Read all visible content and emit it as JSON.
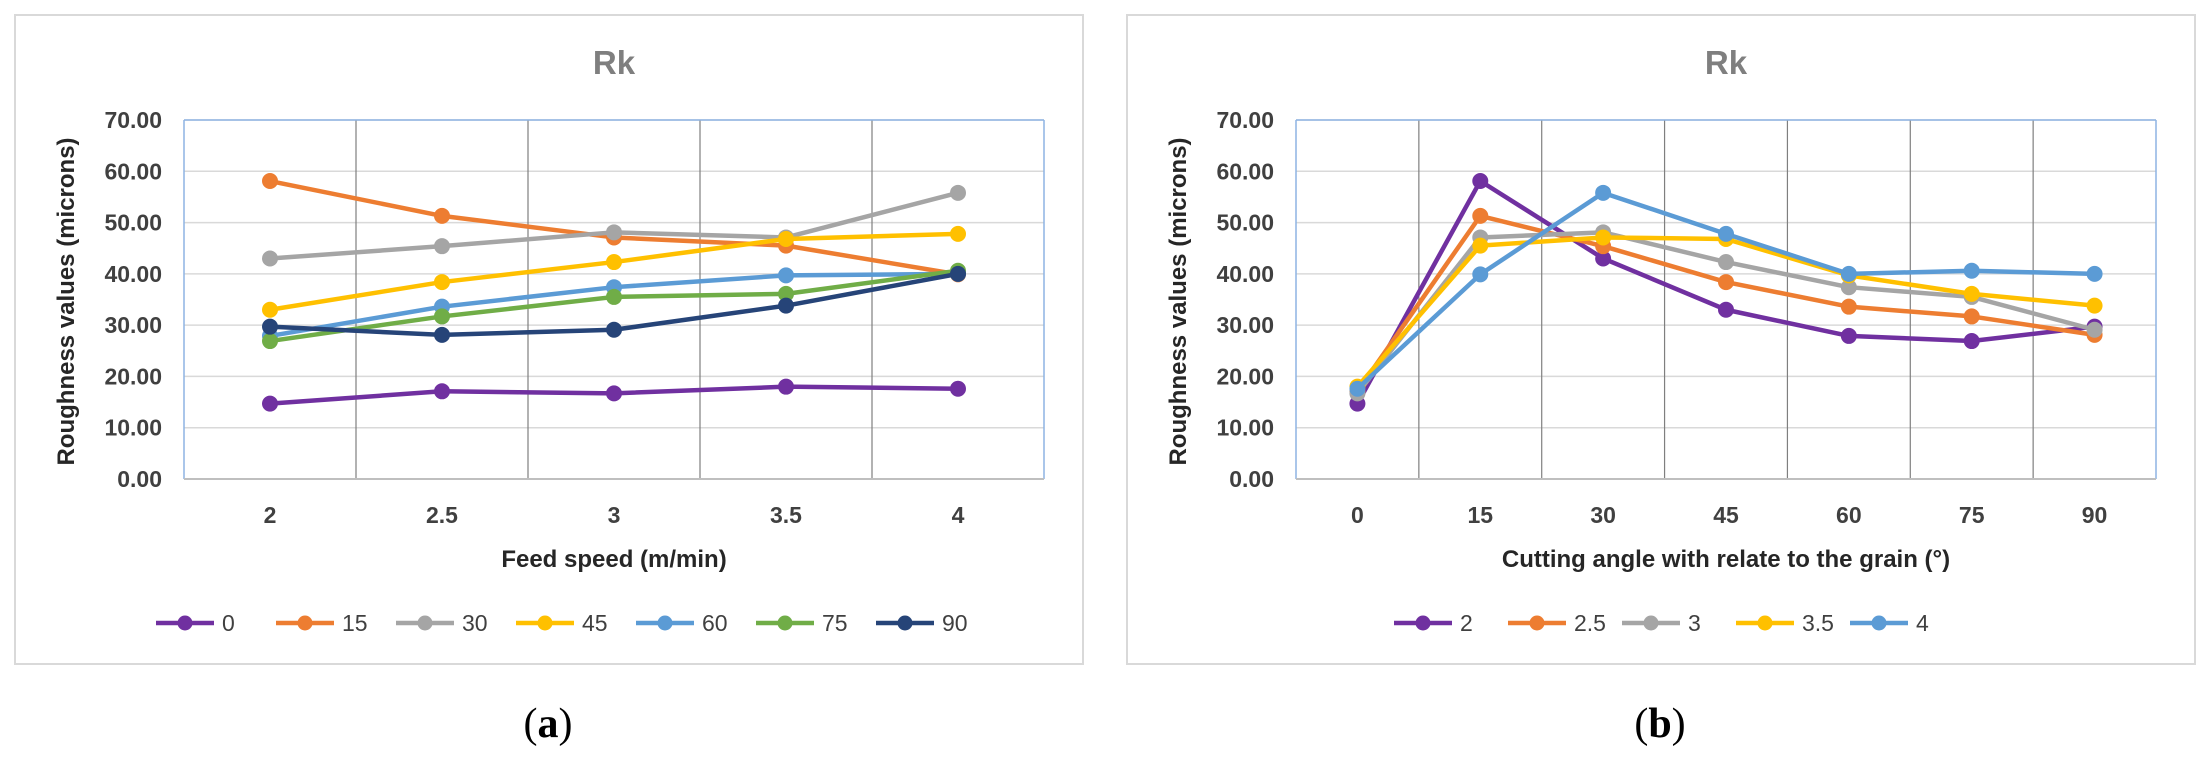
{
  "chart_data": [
    {
      "type": "line",
      "title": "Rk",
      "xlabel": "Feed speed (m/min)",
      "ylabel": "Roughness values (microns)",
      "categories": [
        "2",
        "2.5",
        "3",
        "3.5",
        "4"
      ],
      "ylim": [
        0,
        70
      ],
      "yticks": [
        "0.00",
        "10.00",
        "20.00",
        "30.00",
        "40.00",
        "50.00",
        "60.00",
        "70.00"
      ],
      "legend_position": "bottom",
      "series": [
        {
          "name": "0",
          "color": "#7030a0",
          "values": [
            14.7,
            17.1,
            16.7,
            18.0,
            17.6
          ]
        },
        {
          "name": "15",
          "color": "#ed7d31",
          "values": [
            58.1,
            51.3,
            47.1,
            45.5,
            39.9
          ]
        },
        {
          "name": "30",
          "color": "#a5a5a5",
          "values": [
            43.0,
            45.4,
            48.1,
            47.1,
            55.8
          ]
        },
        {
          "name": "45",
          "color": "#ffc000",
          "values": [
            33.0,
            38.4,
            42.3,
            46.8,
            47.8
          ]
        },
        {
          "name": "60",
          "color": "#5b9bd5",
          "values": [
            27.9,
            33.6,
            37.4,
            39.7,
            40.0
          ]
        },
        {
          "name": "75",
          "color": "#70ad47",
          "values": [
            26.9,
            31.7,
            35.5,
            36.1,
            40.6
          ]
        },
        {
          "name": "90",
          "color": "#264478",
          "values": [
            29.7,
            28.1,
            29.1,
            33.8,
            40.0
          ]
        }
      ]
    },
    {
      "type": "line",
      "title": "Rk",
      "xlabel": "Cutting angle with relate to the grain (°)",
      "ylabel": "Roughness values (microns)",
      "categories": [
        "0",
        "15",
        "30",
        "45",
        "60",
        "75",
        "90"
      ],
      "ylim": [
        0,
        70
      ],
      "yticks": [
        "0.00",
        "10.00",
        "20.00",
        "30.00",
        "40.00",
        "50.00",
        "60.00",
        "70.00"
      ],
      "legend_position": "bottom",
      "series": [
        {
          "name": "2",
          "color": "#7030a0",
          "values": [
            14.7,
            58.1,
            43.0,
            33.0,
            27.9,
            26.9,
            29.7
          ]
        },
        {
          "name": "2.5",
          "color": "#ed7d31",
          "values": [
            17.1,
            51.3,
            45.4,
            38.4,
            33.6,
            31.7,
            28.1
          ]
        },
        {
          "name": "3",
          "color": "#a5a5a5",
          "values": [
            16.7,
            47.1,
            48.1,
            42.3,
            37.4,
            35.5,
            29.1
          ]
        },
        {
          "name": "3.5",
          "color": "#ffc000",
          "values": [
            18.0,
            45.5,
            47.1,
            46.8,
            39.7,
            36.1,
            33.8
          ]
        },
        {
          "name": "4",
          "color": "#5b9bd5",
          "values": [
            17.6,
            39.9,
            55.8,
            47.8,
            40.0,
            40.6,
            40.0
          ]
        }
      ]
    }
  ],
  "captions": {
    "a": "(a)",
    "b": "(b)",
    "a_letter": "a",
    "b_letter": "b"
  }
}
